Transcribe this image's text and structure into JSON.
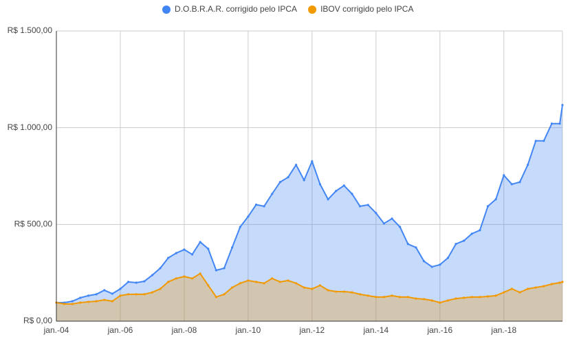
{
  "chart_data": {
    "type": "area",
    "x": [
      "2004-01",
      "2004-04",
      "2004-07",
      "2004-10",
      "2005-01",
      "2005-04",
      "2005-07",
      "2005-10",
      "2006-01",
      "2006-04",
      "2006-07",
      "2006-10",
      "2007-01",
      "2007-04",
      "2007-07",
      "2007-10",
      "2008-01",
      "2008-04",
      "2008-07",
      "2008-10",
      "2009-01",
      "2009-04",
      "2009-07",
      "2009-10",
      "2010-01",
      "2010-04",
      "2010-07",
      "2010-10",
      "2011-01",
      "2011-04",
      "2011-07",
      "2011-10",
      "2012-01",
      "2012-04",
      "2012-07",
      "2012-10",
      "2013-01",
      "2013-04",
      "2013-07",
      "2013-10",
      "2014-01",
      "2014-04",
      "2014-07",
      "2014-10",
      "2015-01",
      "2015-04",
      "2015-07",
      "2015-10",
      "2016-01",
      "2016-04",
      "2016-07",
      "2016-10",
      "2017-01",
      "2017-04",
      "2017-07",
      "2017-10",
      "2018-01",
      "2018-04",
      "2018-07",
      "2018-10",
      "2019-01",
      "2019-04",
      "2019-07",
      "2019-10",
      "2019-11"
    ],
    "series": [
      {
        "name": "D.O.B.R.A.R. corrigido pelo IPCA",
        "color": "#4285f4",
        "values": [
          96,
          96,
          103,
          121,
          132,
          139,
          160,
          142,
          167,
          203,
          199,
          206,
          238,
          274,
          327,
          352,
          370,
          345,
          409,
          374,
          263,
          274,
          381,
          487,
          541,
          602,
          594,
          658,
          719,
          744,
          808,
          729,
          826,
          708,
          630,
          673,
          701,
          658,
          594,
          601,
          559,
          505,
          530,
          487,
          399,
          381,
          310,
          281,
          292,
          327,
          399,
          416,
          452,
          470,
          594,
          630,
          754,
          708,
          719,
          808,
          932,
          932,
          1021,
          1021,
          1117
        ]
      },
      {
        "name": "IBOV corrigido pelo IPCA",
        "color": "#f29900",
        "values": [
          96,
          89,
          89,
          96,
          100,
          103,
          110,
          103,
          132,
          139,
          139,
          139,
          149,
          167,
          203,
          221,
          231,
          221,
          246,
          185,
          125,
          139,
          174,
          196,
          210,
          203,
          196,
          221,
          203,
          210,
          196,
          174,
          167,
          185,
          160,
          153,
          153,
          149,
          139,
          132,
          125,
          125,
          132,
          125,
          125,
          117,
          114,
          107,
          96,
          107,
          117,
          121,
          125,
          125,
          128,
          132,
          149,
          167,
          149,
          167,
          174,
          181,
          192,
          199,
          203
        ]
      }
    ],
    "xlim": [
      "2004-01",
      "2019-11"
    ],
    "xticks": [
      {
        "value": "2004-01",
        "label": "jan.-04"
      },
      {
        "value": "2006-01",
        "label": "jan.-06"
      },
      {
        "value": "2008-01",
        "label": "jan.-08"
      },
      {
        "value": "2010-01",
        "label": "jan.-10"
      },
      {
        "value": "2012-01",
        "label": "jan.-12"
      },
      {
        "value": "2014-01",
        "label": "jan.-14"
      },
      {
        "value": "2016-01",
        "label": "jan.-16"
      },
      {
        "value": "2018-01",
        "label": "jan.-18"
      }
    ],
    "ylim": [
      0,
      1500
    ],
    "yticks": [
      {
        "value": 0,
        "label": "R$ 0,00"
      },
      {
        "value": 500,
        "label": "R$ 500,00"
      },
      {
        "value": 1000,
        "label": "R$ 1.000,00"
      },
      {
        "value": 1500,
        "label": "R$ 1.500,00"
      }
    ],
    "grid": true,
    "legend": "top"
  }
}
